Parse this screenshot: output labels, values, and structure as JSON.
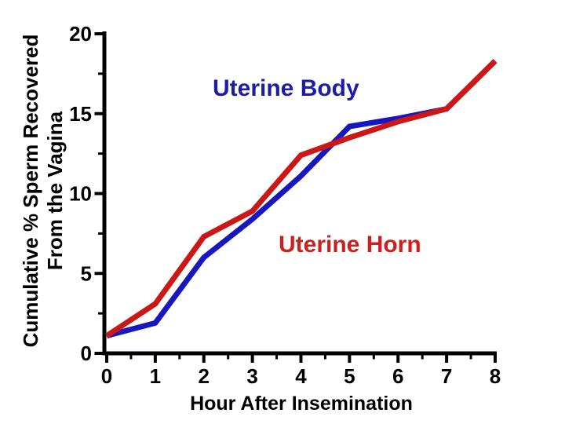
{
  "page": {
    "background": "#ffffff"
  },
  "chart_data": {
    "type": "line",
    "title": "",
    "xlabel": "Hour After Insemination",
    "ylabel_line1": "Cumulative % Sperm Recovered",
    "ylabel_line2": "From the Vagina",
    "xlim": [
      0,
      8
    ],
    "ylim": [
      0,
      20
    ],
    "x_ticks": [
      0,
      1,
      2,
      3,
      4,
      5,
      6,
      7,
      8
    ],
    "y_ticks": [
      0,
      5,
      10,
      15,
      20
    ],
    "x_minor_step": 0.5,
    "y_minor_step": 2.5,
    "grid": false,
    "legend_position": "in-plot text labels",
    "axis_color": "#000000",
    "x": [
      0,
      1,
      2,
      3,
      4,
      5,
      6,
      7,
      8
    ],
    "series": [
      {
        "name": "Uterine Body",
        "color": "#1717c0",
        "label_color": "#1c1ca8",
        "values": [
          1.1,
          1.9,
          6.0,
          8.4,
          11.1,
          14.2,
          14.7,
          15.3,
          18.3
        ]
      },
      {
        "name": "Uterine Horn",
        "color": "#cc1717",
        "label_color": "#cc2020",
        "values": [
          1.1,
          3.1,
          7.3,
          8.9,
          12.4,
          13.5,
          14.5,
          15.3,
          18.3
        ]
      }
    ]
  }
}
